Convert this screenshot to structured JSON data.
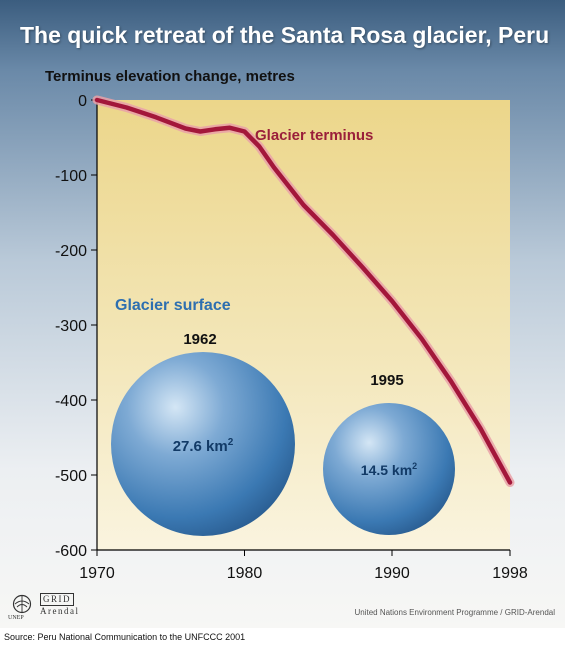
{
  "page": {
    "title": "The quick retreat of the Santa Rosa glacier, Peru",
    "credit_unep": "UNEP",
    "credit_grid_top": "GRID",
    "credit_grid_bottom": "Arendal",
    "credit_right": "United Nations Environment Programme / GRID-Arendal",
    "source": "Source: Peru National Communication to the UNFCCC 2001"
  },
  "chart_data": {
    "type": "line",
    "title": "The quick retreat of the Santa Rosa glacier, Peru",
    "ylabel": "Terminus elevation change, metres",
    "xlabel": "",
    "xlim": [
      1970,
      1998
    ],
    "ylim": [
      -600,
      0
    ],
    "x_ticks": [
      1970,
      1980,
      1990,
      1998
    ],
    "y_ticks": [
      0,
      -100,
      -200,
      -300,
      -400,
      -500,
      -600
    ],
    "grid": false,
    "series": [
      {
        "name": "Glacier terminus",
        "color": "#a3173a",
        "x": [
          1970,
          1972,
          1974,
          1976,
          1977,
          1978,
          1979,
          1980,
          1981,
          1982,
          1984,
          1986,
          1988,
          1990,
          1992,
          1994,
          1996,
          1998
        ],
        "y": [
          0,
          -10,
          -23,
          -38,
          -42,
          -39,
          -37,
          -42,
          -62,
          -90,
          -140,
          -180,
          -223,
          -268,
          -318,
          -375,
          -438,
          -510
        ]
      }
    ],
    "annotations": {
      "surface_heading": "Glacier surface",
      "surface_heading_color": "#2e6fb0",
      "bubbles": [
        {
          "year": "1962",
          "area": 27.6,
          "area_text": "27.6 km",
          "unit_sup": "2"
        },
        {
          "year": "1995",
          "area": 14.5,
          "area_text": "14.5 km",
          "unit_sup": "2"
        }
      ]
    }
  }
}
